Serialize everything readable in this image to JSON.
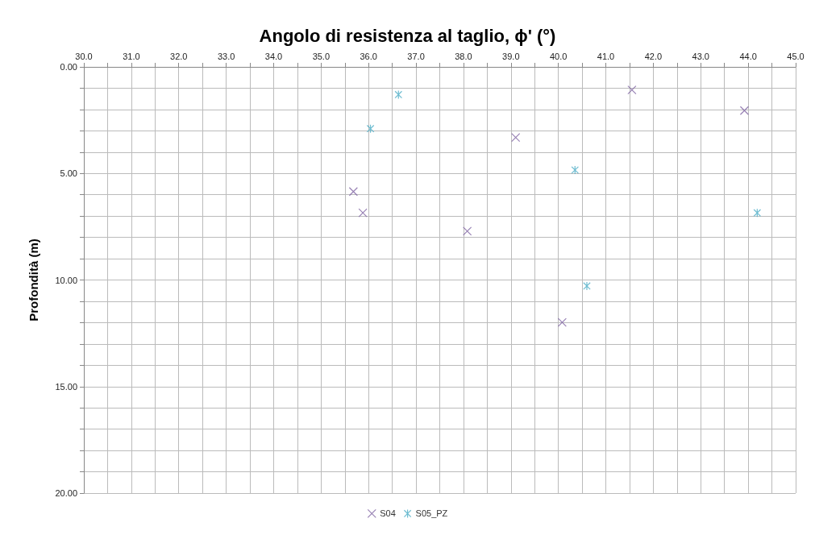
{
  "chart_data": {
    "type": "scatter",
    "title": "Angolo di resistenza al taglio, ϕ' (°)",
    "ylabel": "Profondità (m)",
    "series": [
      {
        "name": "S04",
        "color": "#8064a2",
        "marker": "cross",
        "x": [
          41.55,
          43.92,
          39.1,
          35.68,
          35.88,
          38.08,
          40.08
        ],
        "values": [
          1.08,
          2.05,
          3.31,
          5.85,
          6.85,
          7.71,
          11.99
        ]
      },
      {
        "name": "S05_PZ",
        "color": "#4bacc6",
        "x": [
          36.63,
          36.04,
          40.35,
          44.19,
          40.6
        ],
        "values": [
          1.3,
          2.9,
          4.84,
          6.85,
          10.28
        ]
      }
    ],
    "xlim": [
      30,
      45
    ],
    "xticks": [
      {
        "value": 30,
        "label": "30.0"
      },
      {
        "value": 30.5,
        "label": null
      },
      {
        "value": 31,
        "label": "31.0"
      },
      {
        "value": 31.5,
        "label": null
      },
      {
        "value": 32,
        "label": "32.0"
      },
      {
        "value": 32.5,
        "label": null
      },
      {
        "value": 33,
        "label": "33.0"
      },
      {
        "value": 33.5,
        "label": null
      },
      {
        "value": 34,
        "label": "34.0"
      },
      {
        "value": 34.5,
        "label": null
      },
      {
        "value": 35,
        "label": "35.0"
      },
      {
        "value": 35.5,
        "label": null
      },
      {
        "value": 36,
        "label": "36.0"
      },
      {
        "value": 36.5,
        "label": null
      },
      {
        "value": 37,
        "label": "37.0"
      },
      {
        "value": 37.5,
        "label": null
      },
      {
        "value": 38,
        "label": "38.0"
      },
      {
        "value": 38.5,
        "label": null
      },
      {
        "value": 39,
        "label": "39.0"
      },
      {
        "value": 39.5,
        "label": null
      },
      {
        "value": 40,
        "label": "40.0"
      },
      {
        "value": 40.5,
        "label": null
      },
      {
        "value": 41,
        "label": "41.0"
      },
      {
        "value": 41.5,
        "label": null
      },
      {
        "value": 42,
        "label": "42.0"
      },
      {
        "value": 42.5,
        "label": null
      },
      {
        "value": 43,
        "label": "43.0"
      },
      {
        "value": 43.5,
        "label": null
      },
      {
        "value": 44,
        "label": "44.0"
      },
      {
        "value": 44.5,
        "label": null
      },
      {
        "value": 45,
        "label": "45.0"
      }
    ],
    "ylim": [
      20,
      0
    ],
    "yticks": [
      {
        "value": 0,
        "label": "0.00"
      },
      {
        "value": 1,
        "label": null
      },
      {
        "value": 2,
        "label": null
      },
      {
        "value": 3,
        "label": null
      },
      {
        "value": 4,
        "label": null
      },
      {
        "value": 5,
        "label": "5.00"
      },
      {
        "value": 6,
        "label": null
      },
      {
        "value": 7,
        "label": null
      },
      {
        "value": 8,
        "label": null
      },
      {
        "value": 9,
        "label": null
      },
      {
        "value": 10,
        "label": "10.00"
      },
      {
        "value": 11,
        "label": null
      },
      {
        "value": 12,
        "label": null
      },
      {
        "value": 13,
        "label": null
      },
      {
        "value": 14,
        "label": null
      },
      {
        "value": 15,
        "label": "15.00"
      },
      {
        "value": 16,
        "label": null
      },
      {
        "value": 17,
        "label": null
      },
      {
        "value": 18,
        "label": null
      },
      {
        "value": 19,
        "label": null
      },
      {
        "value": 20,
        "label": "20.00"
      }
    ],
    "grid": true,
    "legend": "bottom"
  }
}
